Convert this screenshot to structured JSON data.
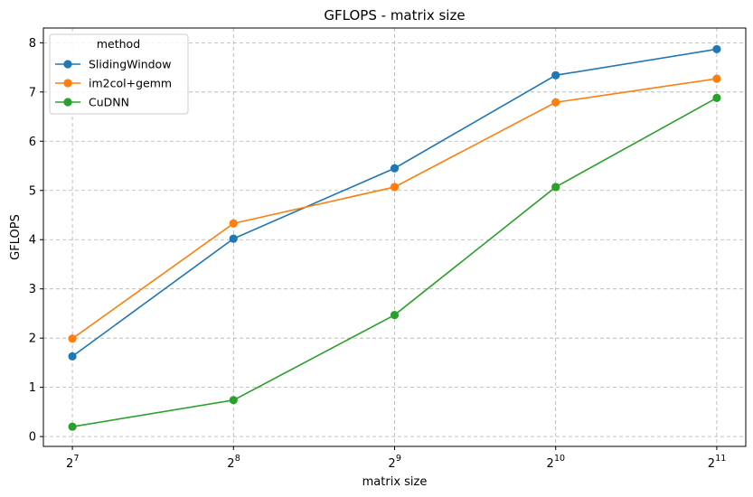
{
  "chart_data": {
    "type": "line",
    "title": "GFLOPS - matrix size",
    "xlabel": "matrix size",
    "ylabel": "GFLOPS",
    "x_scale": "log2",
    "x": [
      128,
      256,
      512,
      1024,
      2048
    ],
    "x_tick_labels": [
      {
        "base": "2",
        "exp": "7"
      },
      {
        "base": "2",
        "exp": "8"
      },
      {
        "base": "2",
        "exp": "9"
      },
      {
        "base": "2",
        "exp": "10"
      },
      {
        "base": "2",
        "exp": "11"
      }
    ],
    "y_ticks": [
      "0",
      "1",
      "2",
      "3",
      "4",
      "5",
      "6",
      "7",
      "8"
    ],
    "ylim": [
      -0.2,
      8.3
    ],
    "grid": true,
    "legend": {
      "title": "method",
      "position": "top-left"
    },
    "series": [
      {
        "name": "SlidingWindow",
        "color": "#1f77b4",
        "values": [
          1.63,
          4.02,
          5.45,
          7.34,
          7.87
        ]
      },
      {
        "name": "im2col+gemm",
        "color": "#ff7f0e",
        "values": [
          1.99,
          4.33,
          5.07,
          6.79,
          7.27
        ]
      },
      {
        "name": "CuDNN",
        "color": "#2ca02c",
        "values": [
          0.2,
          0.74,
          2.47,
          5.07,
          6.88
        ]
      }
    ]
  }
}
